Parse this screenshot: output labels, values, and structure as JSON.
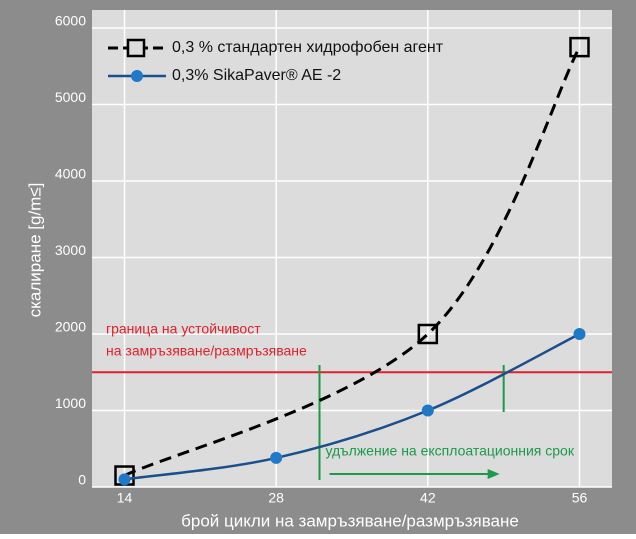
{
  "chart_data": {
    "type": "line",
    "xlabel": "брой цикли на замръзяване/размръзяване",
    "ylabel": "скалиране [g/m≤]",
    "series": [
      {
        "name": "0,3 % стандартен хидрофобен агент",
        "color": "#000000",
        "dashed": true,
        "marker": "square",
        "x": [
          14,
          42,
          56
        ],
        "values": [
          150,
          2000,
          5750
        ]
      },
      {
        "name": "0,3% SikaPaver® AE -2",
        "color": "#1b4f8a",
        "marker_color": "#1f78c8",
        "marker": "circle",
        "x": [
          14,
          28,
          42,
          56
        ],
        "values": [
          100,
          380,
          1000,
          2000
        ]
      }
    ],
    "xlim": [
      11,
      59
    ],
    "ylim": [
      0,
      6000
    ],
    "xticks": [
      14,
      28,
      42,
      56
    ],
    "yticks": [
      0,
      1000,
      2000,
      3000,
      4000,
      5000,
      6000
    ],
    "grid": true,
    "legend": "upper left",
    "threshold": {
      "value": 1500,
      "color": "#e0202a",
      "label_lines": [
        "граница на устойчивост",
        "на замръзяване/размръзяване"
      ]
    },
    "extension": {
      "label": "удължение на експлоатационния срок",
      "x_from": 32,
      "x_to": 49,
      "color": "#1a9a4a"
    }
  }
}
